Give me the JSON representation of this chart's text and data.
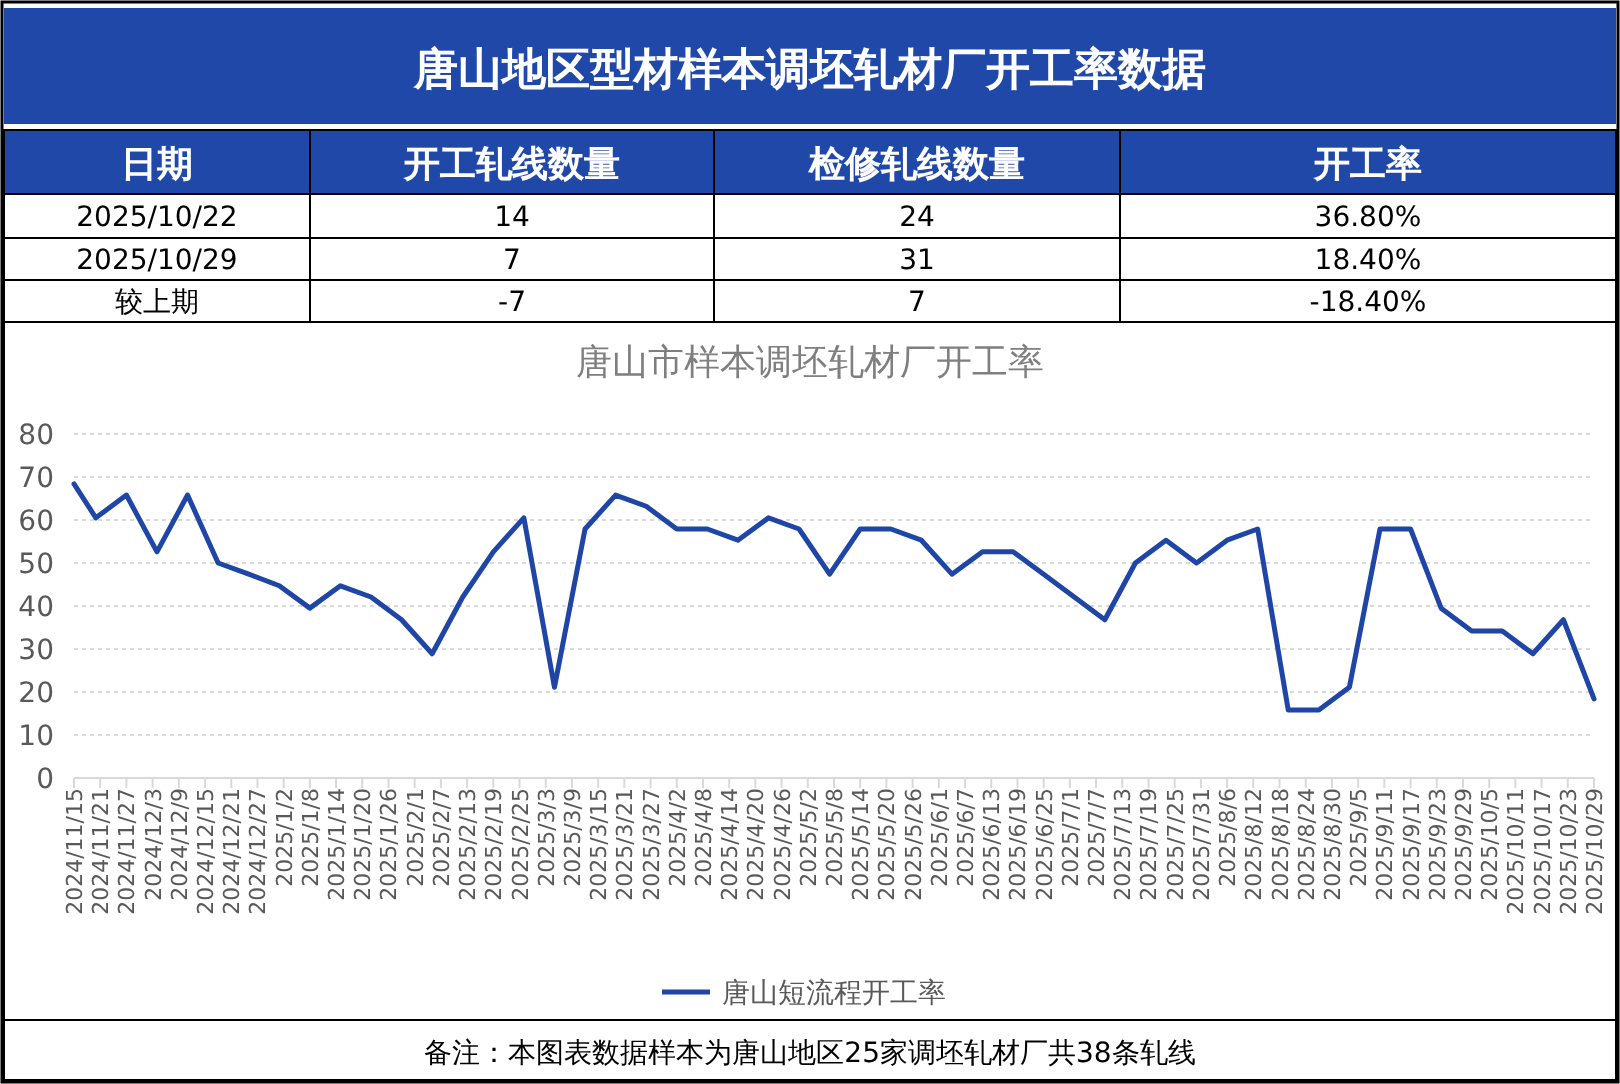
{
  "chart_data": [
    {
      "type": "other",
      "title": "唐山地区型材样本调坯轧材厂开工率数据",
      "annotations": [
        "日期",
        "开工轧线数量",
        "检修轧线数量",
        "开工率",
        "2025/10/22",
        "14",
        "24",
        "36.80%",
        "2025/10/29",
        "7",
        "31",
        "18.40%",
        "较上期",
        "-7",
        "7",
        "-18.40%"
      ]
    },
    {
      "type": "line",
      "title": "唐山市样本调坯轧材厂开工率",
      "x": [
        "2024-11-15",
        "2024-11-20",
        "2024-11-27",
        "2024-12-04",
        "2024-12-11",
        "2024-12-18",
        "2024-12-25",
        "2025-01-01",
        "2025-01-08",
        "2025-01-15",
        "2025-01-22",
        "2025-01-29",
        "2025-02-05",
        "2025-02-12",
        "2025-02-19",
        "2025-02-26",
        "2025-03-05",
        "2025-03-12",
        "2025-03-19",
        "2025-03-26",
        "2025-04-02",
        "2025-04-09",
        "2025-04-16",
        "2025-04-23",
        "2025-04-30",
        "2025-05-07",
        "2025-05-14",
        "2025-05-21",
        "2025-05-28",
        "2025-06-04",
        "2025-06-11",
        "2025-06-18",
        "2025-06-25",
        "2025-07-02",
        "2025-07-09",
        "2025-07-16",
        "2025-07-23",
        "2025-07-30",
        "2025-08-06",
        "2025-08-13",
        "2025-08-20",
        "2025-08-27",
        "2025-09-03",
        "2025-09-10",
        "2025-09-17",
        "2025-09-24",
        "2025-10-01",
        "2025-10-08",
        "2025-10-15",
        "2025-10-22",
        "2025-10-29"
      ],
      "series": [
        {
          "name": "唐山短流程开工率",
          "color": "#1f45a6",
          "values": [
            68.4,
            60.5,
            65.8,
            52.6,
            65.8,
            50.0,
            47.4,
            44.7,
            39.5,
            44.7,
            42.1,
            36.8,
            28.9,
            42.1,
            52.6,
            60.5,
            21.1,
            57.9,
            65.8,
            63.2,
            57.9,
            57.9,
            55.3,
            60.5,
            57.9,
            47.4,
            57.9,
            57.9,
            55.3,
            47.4,
            52.6,
            52.6,
            47.4,
            42.1,
            36.8,
            50.0,
            55.3,
            50.0,
            55.3,
            57.9,
            15.8,
            15.8,
            21.1,
            57.9,
            57.9,
            39.5,
            34.2,
            34.2,
            28.9,
            36.8,
            18.4
          ]
        }
      ],
      "xlim": [
        "2024-11-15",
        "2025-10-29"
      ],
      "xticks": [
        {
          "value": "2024-11-15",
          "label": "2024/11/15"
        },
        {
          "value": "2024-11-21",
          "label": "2024/11/21"
        },
        {
          "value": "2024-11-27",
          "label": "2024/11/27"
        },
        {
          "value": "2024-12-03",
          "label": "2024/12/3"
        },
        {
          "value": "2024-12-09",
          "label": "2024/12/9"
        },
        {
          "value": "2024-12-15",
          "label": "2024/12/15"
        },
        {
          "value": "2024-12-21",
          "label": "2024/12/21"
        },
        {
          "value": "2024-12-27",
          "label": "2024/12/27"
        },
        {
          "value": "2025-01-02",
          "label": "2025/1/2"
        },
        {
          "value": "2025-01-08",
          "label": "2025/1/8"
        },
        {
          "value": "2025-01-14",
          "label": "2025/1/14"
        },
        {
          "value": "2025-01-20",
          "label": "2025/1/20"
        },
        {
          "value": "2025-01-26",
          "label": "2025/1/26"
        },
        {
          "value": "2025-02-01",
          "label": "2025/2/1"
        },
        {
          "value": "2025-02-07",
          "label": "2025/2/7"
        },
        {
          "value": "2025-02-13",
          "label": "2025/2/13"
        },
        {
          "value": "2025-02-19",
          "label": "2025/2/19"
        },
        {
          "value": "2025-02-25",
          "label": "2025/2/25"
        },
        {
          "value": "2025-03-03",
          "label": "2025/3/3"
        },
        {
          "value": "2025-03-09",
          "label": "2025/3/9"
        },
        {
          "value": "2025-03-15",
          "label": "2025/3/15"
        },
        {
          "value": "2025-03-21",
          "label": "2025/3/21"
        },
        {
          "value": "2025-03-27",
          "label": "2025/3/27"
        },
        {
          "value": "2025-04-02",
          "label": "2025/4/2"
        },
        {
          "value": "2025-04-08",
          "label": "2025/4/8"
        },
        {
          "value": "2025-04-14",
          "label": "2025/4/14"
        },
        {
          "value": "2025-04-20",
          "label": "2025/4/20"
        },
        {
          "value": "2025-04-26",
          "label": "2025/4/26"
        },
        {
          "value": "2025-05-02",
          "label": "2025/5/2"
        },
        {
          "value": "2025-05-08",
          "label": "2025/5/8"
        },
        {
          "value": "2025-05-14",
          "label": "2025/5/14"
        },
        {
          "value": "2025-05-20",
          "label": "2025/5/20"
        },
        {
          "value": "2025-05-26",
          "label": "2025/5/26"
        },
        {
          "value": "2025-06-01",
          "label": "2025/6/1"
        },
        {
          "value": "2025-06-07",
          "label": "2025/6/7"
        },
        {
          "value": "2025-06-13",
          "label": "2025/6/13"
        },
        {
          "value": "2025-06-19",
          "label": "2025/6/19"
        },
        {
          "value": "2025-06-25",
          "label": "2025/6/25"
        },
        {
          "value": "2025-07-01",
          "label": "2025/7/1"
        },
        {
          "value": "2025-07-07",
          "label": "2025/7/7"
        },
        {
          "value": "2025-07-13",
          "label": "2025/7/13"
        },
        {
          "value": "2025-07-19",
          "label": "2025/7/19"
        },
        {
          "value": "2025-07-25",
          "label": "2025/7/25"
        },
        {
          "value": "2025-07-31",
          "label": "2025/7/31"
        },
        {
          "value": "2025-08-06",
          "label": "2025/8/6"
        },
        {
          "value": "2025-08-12",
          "label": "2025/8/12"
        },
        {
          "value": "2025-08-18",
          "label": "2025/8/18"
        },
        {
          "value": "2025-08-24",
          "label": "2025/8/24"
        },
        {
          "value": "2025-08-30",
          "label": "2025/8/30"
        },
        {
          "value": "2025-09-05",
          "label": "2025/9/5"
        },
        {
          "value": "2025-09-11",
          "label": "2025/9/11"
        },
        {
          "value": "2025-09-17",
          "label": "2025/9/17"
        },
        {
          "value": "2025-09-23",
          "label": "2025/9/23"
        },
        {
          "value": "2025-09-29",
          "label": "2025/9/29"
        },
        {
          "value": "2025-10-05",
          "label": "2025/10/5"
        },
        {
          "value": "2025-10-11",
          "label": "2025/10/11"
        },
        {
          "value": "2025-10-17",
          "label": "2025/10/17"
        },
        {
          "value": "2025-10-23",
          "label": "2025/10/23"
        },
        {
          "value": "2025-10-29",
          "label": "2025/10/29"
        }
      ],
      "ylim": [
        0,
        80
      ],
      "yticks": [
        0,
        10,
        20,
        30,
        40,
        50,
        60,
        70,
        80
      ],
      "grid": "y",
      "legend": "bottom",
      "line_style": "solid",
      "marker": "none",
      "annotations": [
        "备注：本图表数据样本为唐山地区25家调坯轧材厂共38条轧线"
      ]
    }
  ]
}
